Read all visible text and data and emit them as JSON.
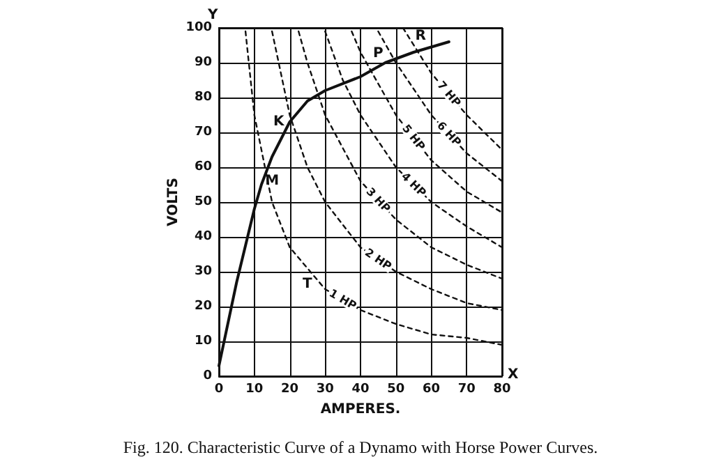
{
  "chart_data": {
    "type": "line",
    "title": "Fig. 120. Characteristic Curve of a Dynamo with Horse Power Curves.",
    "xlabel": "AMPERES.",
    "ylabel": "VOLTS",
    "xlim": [
      0,
      80
    ],
    "xticks": [
      0,
      10,
      20,
      30,
      40,
      50,
      60,
      70,
      80
    ],
    "ylim": [
      0,
      100
    ],
    "yticks": [
      0,
      10,
      20,
      30,
      40,
      50,
      60,
      70,
      80,
      90,
      100
    ],
    "grid": true,
    "marker": "none",
    "series": [
      {
        "color": "#111111",
        "line_style": "solid",
        "x": [
          0,
          5,
          10,
          12,
          15,
          20,
          25,
          30,
          40,
          47,
          55,
          65
        ],
        "values": [
          3,
          27,
          48,
          55,
          63,
          73,
          79,
          82,
          86,
          90,
          93,
          96
        ]
      },
      {
        "name": "1 HP",
        "color": "#111111",
        "line_style": "dashed",
        "x": [
          7.5,
          10,
          15,
          20,
          30,
          40,
          50,
          60,
          70,
          80
        ],
        "values": [
          99,
          75,
          50,
          37,
          25,
          19,
          15,
          12,
          11,
          9
        ]
      },
      {
        "name": "2 HP",
        "color": "#111111",
        "line_style": "dashed",
        "x": [
          15,
          20,
          25,
          30,
          40,
          50,
          60,
          70,
          80
        ],
        "values": [
          99,
          75,
          60,
          50,
          37,
          30,
          25,
          21,
          19
        ]
      },
      {
        "name": "3 HP",
        "color": "#111111",
        "line_style": "dashed",
        "x": [
          22.5,
          25,
          30,
          40,
          50,
          60,
          70,
          80
        ],
        "values": [
          99,
          90,
          75,
          56,
          45,
          37,
          32,
          28
        ]
      },
      {
        "name": "4 HP",
        "color": "#111111",
        "line_style": "dashed",
        "x": [
          30,
          35,
          40,
          50,
          60,
          70,
          80
        ],
        "values": [
          99,
          85,
          75,
          60,
          50,
          43,
          37
        ]
      },
      {
        "name": "5 HP",
        "color": "#111111",
        "line_style": "dashed",
        "x": [
          37.5,
          40,
          50,
          60,
          70,
          80
        ],
        "values": [
          99,
          93,
          75,
          62,
          53,
          47
        ]
      },
      {
        "name": "6 HP",
        "color": "#111111",
        "line_style": "dashed",
        "x": [
          45,
          50,
          60,
          70,
          80
        ],
        "values": [
          99,
          90,
          75,
          64,
          56
        ]
      },
      {
        "name": "7 HP",
        "color": "#111111",
        "line_style": "dashed",
        "x": [
          52,
          60,
          70,
          80
        ],
        "values": [
          100,
          87,
          75,
          65
        ]
      }
    ],
    "annotations": [
      "X",
      "Y",
      {
        "text": "K",
        "x": 20,
        "y": 73
      },
      {
        "text": "M",
        "x": 15,
        "y": 56
      },
      {
        "text": "P",
        "x": 45,
        "y": 89
      },
      {
        "text": "R",
        "x": 57,
        "y": 94
      },
      {
        "text": "T",
        "x": 25,
        "y": 30
      }
    ]
  }
}
